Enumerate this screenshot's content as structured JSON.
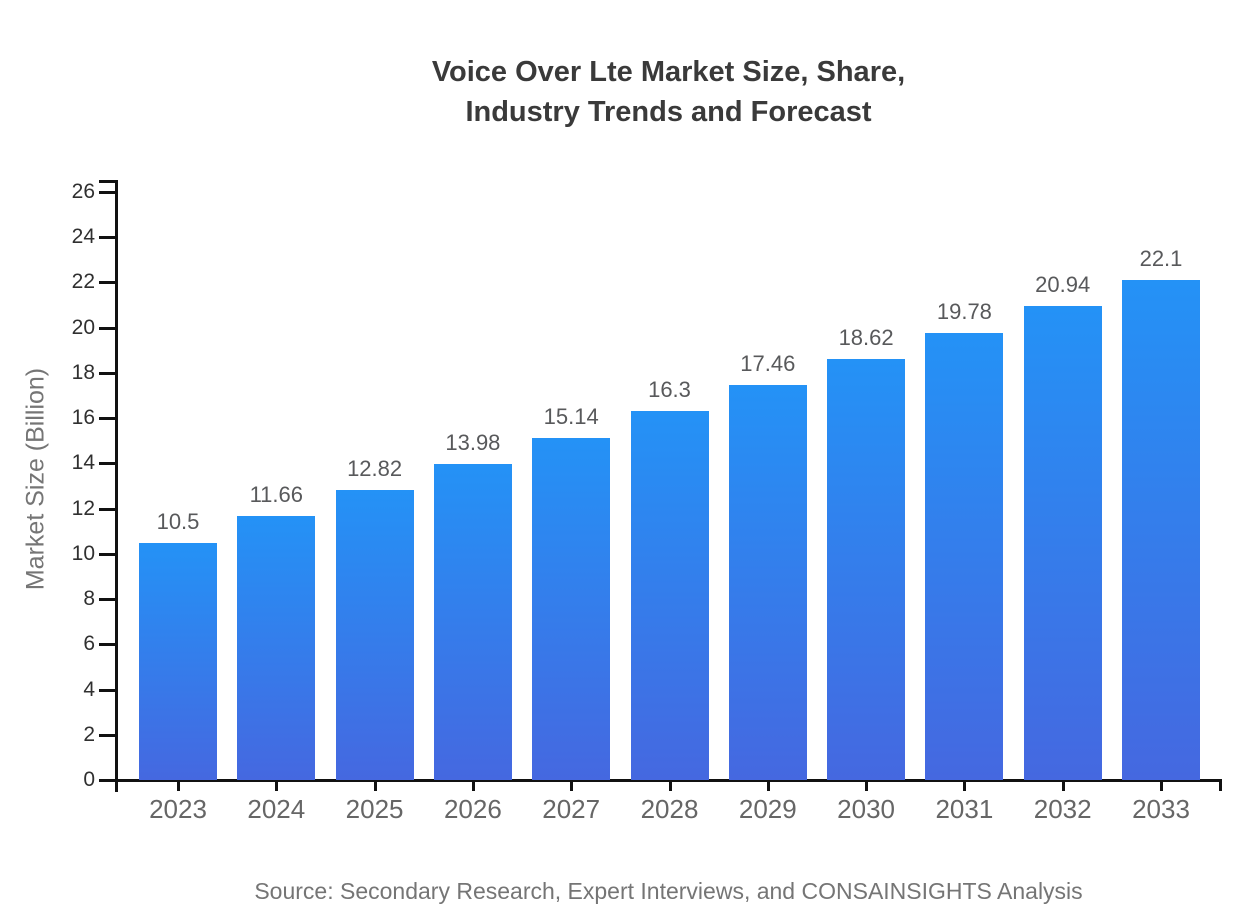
{
  "title": {
    "line1": "Voice Over Lte Market Size, Share,",
    "line2": "Industry Trends and Forecast"
  },
  "source_note": "Source: Secondary Research, Expert Interviews, and CONSAINSIGHTS Analysis",
  "chart_data": {
    "type": "bar",
    "title": "Voice Over Lte Market Size, Share, Industry Trends and Forecast",
    "categories": [
      "2023",
      "2024",
      "2025",
      "2026",
      "2027",
      "2028",
      "2029",
      "2030",
      "2031",
      "2032",
      "2033"
    ],
    "values": [
      10.5,
      11.66,
      12.82,
      13.98,
      15.14,
      16.3,
      17.46,
      18.62,
      19.78,
      20.94,
      22.1
    ],
    "value_labels": [
      "10.5",
      "11.66",
      "12.82",
      "13.98",
      "15.14",
      "16.3",
      "17.46",
      "18.62",
      "19.78",
      "20.94",
      "22.1"
    ],
    "xlabel": "",
    "ylabel": "Market Size (Billion)",
    "ylim": [
      0,
      26
    ],
    "ytick_step": 2,
    "grid": false,
    "legend": "none",
    "colors": {
      "bar_gradient_top": "#2492F6",
      "bar_gradient_bottom": "#4568E0",
      "axis": "#111111",
      "y_tick_label": "#303030",
      "x_tick_label": "#666666",
      "value_label": "#58595b",
      "axis_title": "#757575",
      "title": "#3a3a3a",
      "source": "#757575",
      "background": "#ffffff"
    }
  }
}
